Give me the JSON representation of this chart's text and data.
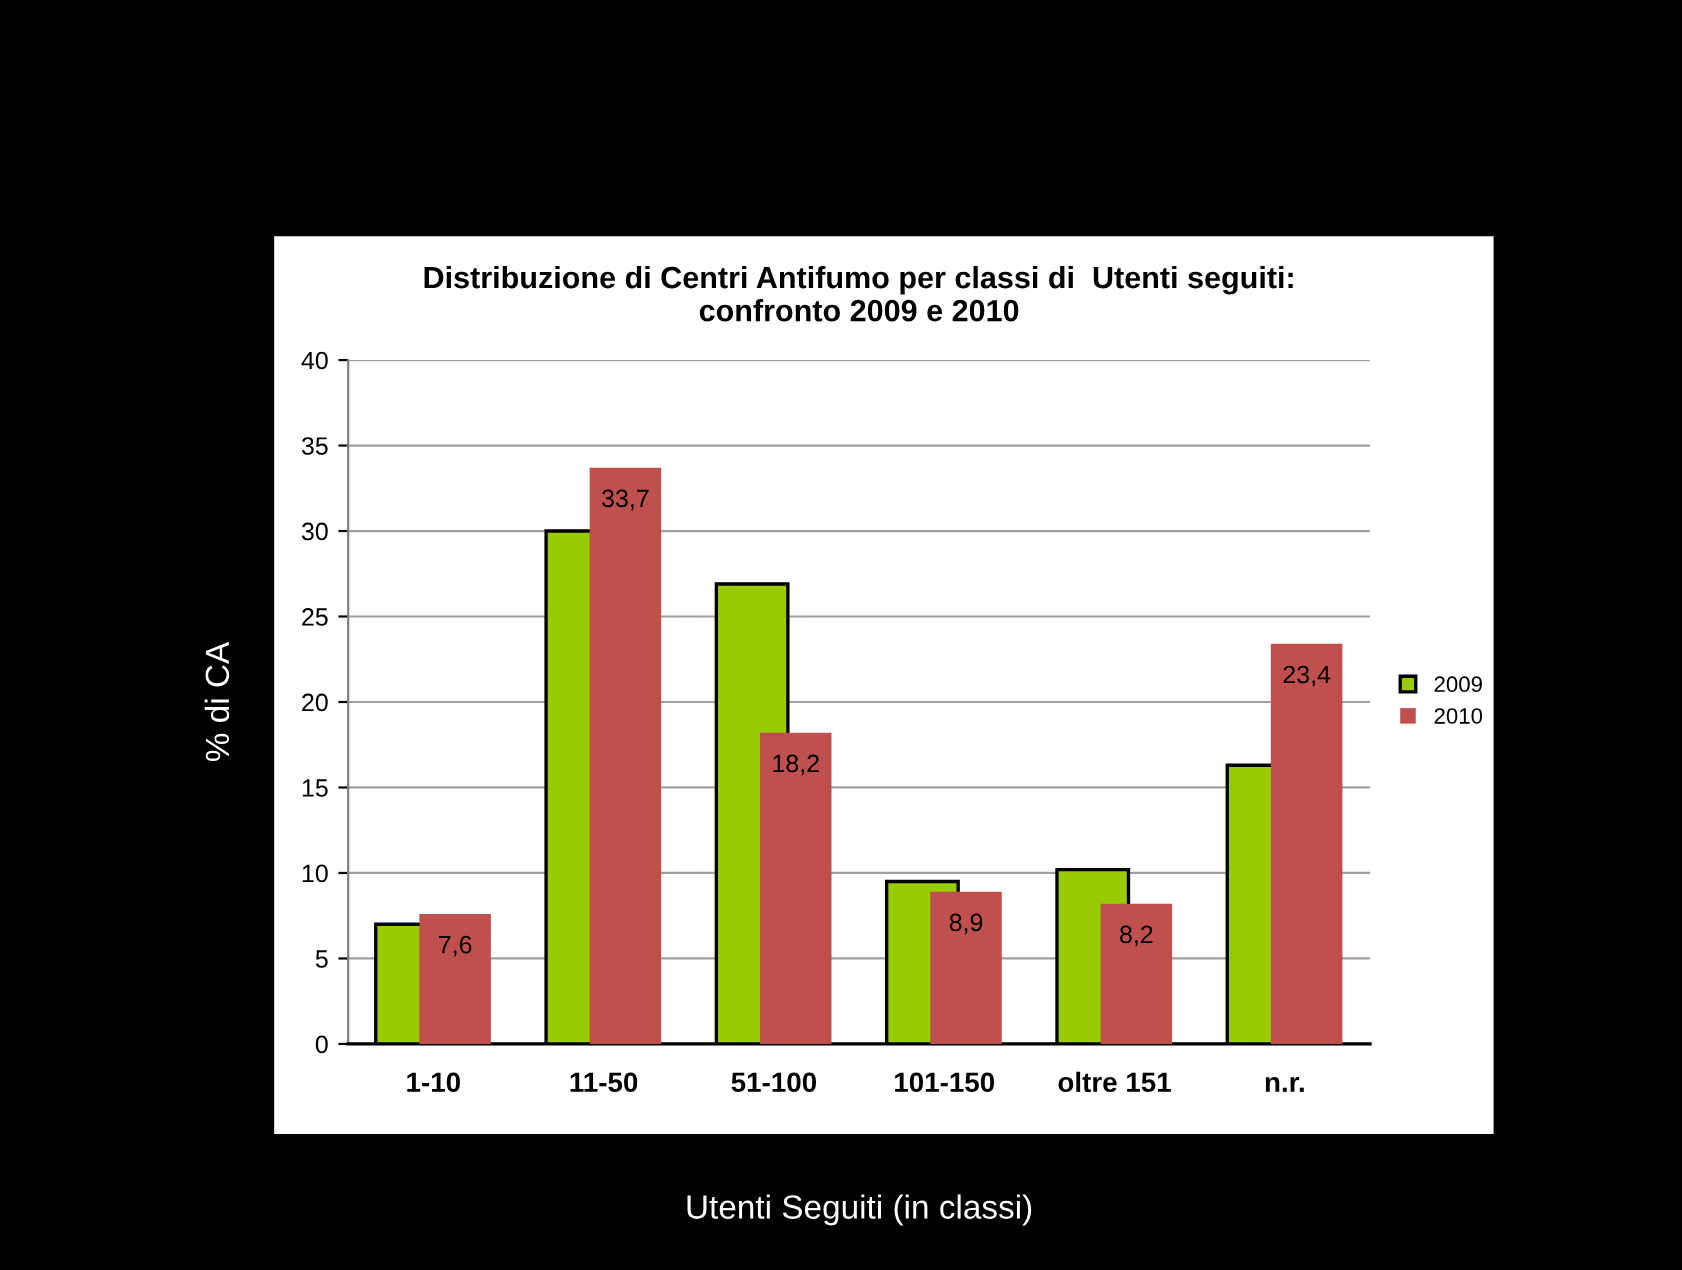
{
  "chart_data": {
    "type": "bar",
    "title": "Distribuzione di Centri Antifumo per classi di  Utenti seguiti:\nconfronto 2009 e 2010",
    "xlabel": "Utenti Seguiti (in classi)",
    "ylabel": "% di CA",
    "categories": [
      "1-10",
      "11-50",
      "51-100",
      "101-150",
      "oltre 151",
      "n.r."
    ],
    "series": [
      {
        "name": "2009",
        "color": "#99cc00",
        "values": [
          7.0,
          30.0,
          26.9,
          9.5,
          10.2,
          16.3
        ]
      },
      {
        "name": "2010",
        "color": "#c0504d",
        "values": [
          7.6,
          33.7,
          18.2,
          8.9,
          8.2,
          23.4
        ],
        "value_labels": [
          "7,6",
          "33,7",
          "18,2",
          "8,9",
          "8,2",
          "23,4"
        ]
      }
    ],
    "ylim": [
      0,
      40
    ],
    "yticks": [
      0,
      5,
      10,
      15,
      20,
      25,
      30,
      35,
      40
    ],
    "grid": "y",
    "legend": "right"
  }
}
